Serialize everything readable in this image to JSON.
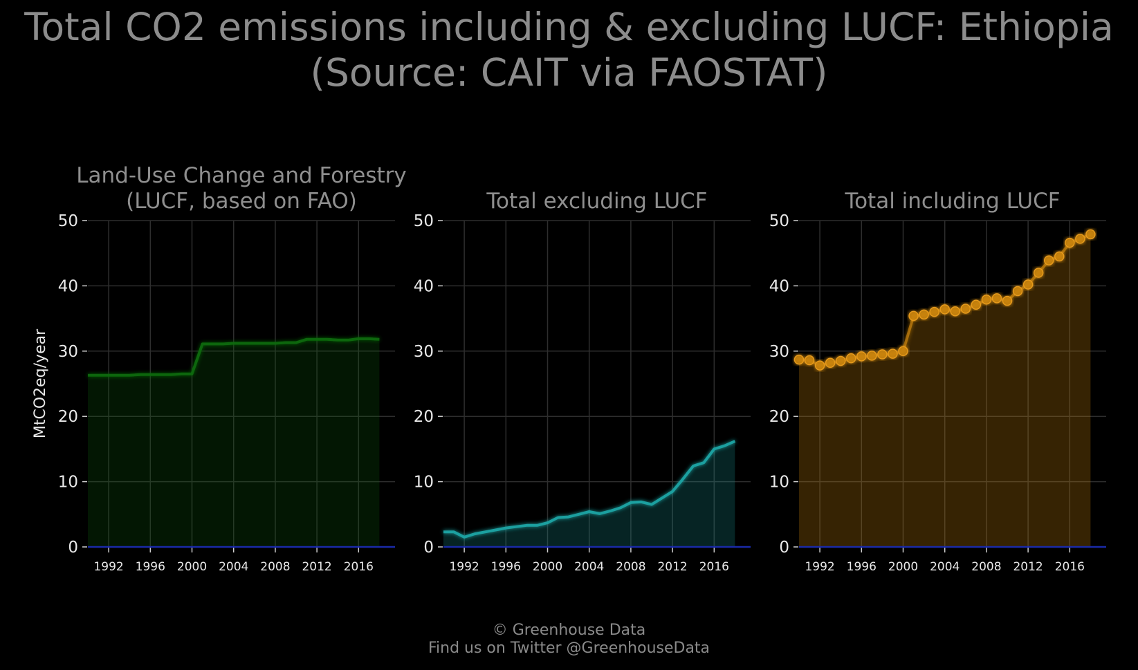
{
  "title": {
    "line1": "Total CO2 emissions including & excluding LUCF: Ethiopia",
    "line2": "(Source: CAIT via FAOSTAT)"
  },
  "footer": {
    "line1": "© Greenhouse Data",
    "line2": "Find us on Twitter @GreenhouseData"
  },
  "colors": {
    "background": "#000000",
    "grid": "#2e2e2e",
    "zero_line": "#1a2aa8",
    "lucf": "#0d6b0d",
    "excl": "#1aa3a3",
    "incl": "#c8820a"
  },
  "chart_data": [
    {
      "type": "area",
      "title": "Land-Use Change and Forestry\n(LUCF, based on FAO)",
      "ylabel": "MtCO2eq/year",
      "ylim": [
        0,
        50
      ],
      "yticks": [
        0,
        10,
        20,
        30,
        40,
        50
      ],
      "xticks": [
        1992,
        1996,
        2000,
        2004,
        2008,
        2012,
        2016
      ],
      "xlim": [
        1990,
        2019.5
      ],
      "grid": true,
      "markers": false,
      "series": [
        {
          "x": [
            1990,
            1991,
            1992,
            1993,
            1994,
            1995,
            1996,
            1997,
            1998,
            1999,
            2000,
            2001,
            2002,
            2003,
            2004,
            2005,
            2006,
            2007,
            2008,
            2009,
            2010,
            2011,
            2012,
            2013,
            2014,
            2015,
            2016,
            2017,
            2018
          ],
          "values": [
            26.3,
            26.3,
            26.3,
            26.3,
            26.3,
            26.4,
            26.4,
            26.4,
            26.4,
            26.5,
            26.5,
            31.1,
            31.1,
            31.1,
            31.2,
            31.2,
            31.2,
            31.2,
            31.2,
            31.3,
            31.3,
            31.8,
            31.8,
            31.8,
            31.7,
            31.7,
            31.9,
            31.9,
            31.8
          ]
        }
      ]
    },
    {
      "type": "area",
      "title": "Total excluding LUCF",
      "ylim": [
        0,
        50
      ],
      "yticks": [
        0,
        10,
        20,
        30,
        40,
        50
      ],
      "xticks": [
        1992,
        1996,
        2000,
        2004,
        2008,
        2012,
        2016
      ],
      "xlim": [
        1990,
        2019.5
      ],
      "grid": true,
      "markers": false,
      "series": [
        {
          "x": [
            1990,
            1991,
            1992,
            1993,
            1994,
            1995,
            1996,
            1997,
            1998,
            1999,
            2000,
            2001,
            2002,
            2003,
            2004,
            2005,
            2006,
            2007,
            2008,
            2009,
            2010,
            2011,
            2012,
            2013,
            2014,
            2015,
            2016,
            2017,
            2018
          ],
          "values": [
            2.3,
            2.3,
            1.5,
            2.0,
            2.3,
            2.6,
            2.9,
            3.1,
            3.3,
            3.3,
            3.7,
            4.5,
            4.6,
            5.0,
            5.4,
            5.1,
            5.5,
            6.0,
            6.8,
            6.9,
            6.5,
            7.5,
            8.5,
            10.4,
            12.4,
            12.9,
            15.0,
            15.5,
            16.2
          ]
        }
      ]
    },
    {
      "type": "area",
      "title": "Total including LUCF",
      "ylim": [
        0,
        50
      ],
      "yticks": [
        0,
        10,
        20,
        30,
        40,
        50
      ],
      "xticks": [
        1992,
        1996,
        2000,
        2004,
        2008,
        2012,
        2016
      ],
      "xlim": [
        1990,
        2019.5
      ],
      "grid": true,
      "markers": true,
      "series": [
        {
          "x": [
            1990,
            1991,
            1992,
            1993,
            1994,
            1995,
            1996,
            1997,
            1998,
            1999,
            2000,
            2001,
            2002,
            2003,
            2004,
            2005,
            2006,
            2007,
            2008,
            2009,
            2010,
            2011,
            2012,
            2013,
            2014,
            2015,
            2016,
            2017,
            2018
          ],
          "values": [
            28.7,
            28.6,
            27.8,
            28.2,
            28.5,
            28.9,
            29.2,
            29.3,
            29.5,
            29.6,
            30.0,
            35.4,
            35.6,
            36.0,
            36.4,
            36.1,
            36.5,
            37.1,
            37.9,
            38.1,
            37.7,
            39.2,
            40.2,
            42.0,
            43.9,
            44.5,
            46.6,
            47.2,
            47.9
          ]
        }
      ]
    }
  ]
}
